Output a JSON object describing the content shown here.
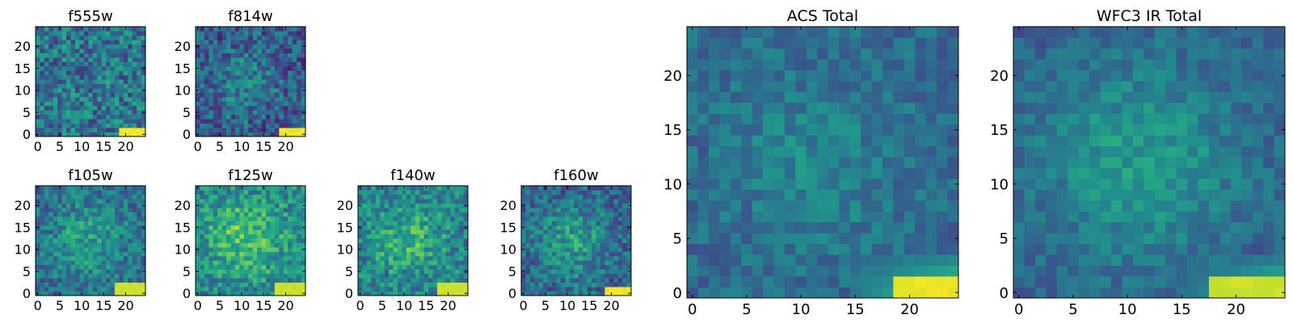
{
  "chart_data": [
    {
      "type": "heatmap",
      "title": "f555w",
      "xticks": [
        0,
        5,
        10,
        15,
        20
      ],
      "yticks": [
        0,
        5,
        10,
        15,
        20
      ],
      "xlim": [
        -0.5,
        24.5
      ],
      "ylim": [
        -0.5,
        24.5
      ],
      "grid_size": 25,
      "grid": false,
      "colormap": "viridis",
      "noise_level": 0.45,
      "background_level": 0.4,
      "features": [
        {
          "kind": "bright_corner",
          "x_range": [
            19,
            24
          ],
          "y_range": [
            0,
            1
          ],
          "level": 1.0
        }
      ]
    },
    {
      "type": "heatmap",
      "title": "f814w",
      "xticks": [
        0,
        5,
        10,
        15,
        20
      ],
      "yticks": [
        0,
        5,
        10,
        15,
        20
      ],
      "xlim": [
        -0.5,
        24.5
      ],
      "ylim": [
        -0.5,
        24.5
      ],
      "grid_size": 25,
      "grid": false,
      "colormap": "viridis",
      "noise_level": 0.4,
      "background_level": 0.28,
      "features": [
        {
          "kind": "blob",
          "x": 11,
          "y": 12,
          "radius": 5,
          "level": 0.18
        },
        {
          "kind": "bright_corner",
          "x_range": [
            19,
            24
          ],
          "y_range": [
            0,
            1
          ],
          "level": 1.0
        }
      ]
    },
    {
      "type": "heatmap",
      "title": "f105w",
      "xticks": [
        0,
        5,
        10,
        15,
        20
      ],
      "yticks": [
        0,
        5,
        10,
        15,
        20
      ],
      "xlim": [
        -0.5,
        24.5
      ],
      "ylim": [
        -0.5,
        24.5
      ],
      "grid_size": 25,
      "grid": false,
      "colormap": "viridis",
      "noise_level": 0.35,
      "background_level": 0.36,
      "features": [
        {
          "kind": "blob",
          "x": 11,
          "y": 12,
          "radius": 6,
          "level": 0.22
        },
        {
          "kind": "bright_corner",
          "x_range": [
            18,
            24
          ],
          "y_range": [
            0,
            2
          ],
          "level": 0.95
        }
      ]
    },
    {
      "type": "heatmap",
      "title": "f125w",
      "xticks": [
        0,
        5,
        10,
        15,
        20
      ],
      "yticks": [
        0,
        5,
        10,
        15,
        20
      ],
      "xlim": [
        -0.5,
        24.5
      ],
      "ylim": [
        -0.5,
        24.5
      ],
      "grid_size": 25,
      "grid": false,
      "colormap": "viridis",
      "noise_level": 0.38,
      "background_level": 0.46,
      "features": [
        {
          "kind": "blob",
          "x": 11,
          "y": 13,
          "radius": 6,
          "level": 0.28
        },
        {
          "kind": "bright_corner",
          "x_range": [
            18,
            24
          ],
          "y_range": [
            0,
            2
          ],
          "level": 0.95
        }
      ]
    },
    {
      "type": "heatmap",
      "title": "f140w",
      "xticks": [
        0,
        5,
        10,
        15,
        20
      ],
      "yticks": [
        0,
        5,
        10,
        15,
        20
      ],
      "xlim": [
        -0.5,
        24.5
      ],
      "ylim": [
        -0.5,
        24.5
      ],
      "grid_size": 25,
      "grid": false,
      "colormap": "viridis",
      "noise_level": 0.38,
      "background_level": 0.44,
      "features": [
        {
          "kind": "blob",
          "x": 11,
          "y": 12,
          "radius": 6,
          "level": 0.2
        },
        {
          "kind": "bright_corner",
          "x_range": [
            18,
            24
          ],
          "y_range": [
            0,
            2
          ],
          "level": 0.95
        }
      ]
    },
    {
      "type": "heatmap",
      "title": "f160w",
      "xticks": [
        0,
        5,
        10,
        15,
        20
      ],
      "yticks": [
        0,
        5,
        10,
        15,
        20
      ],
      "xlim": [
        -0.5,
        24.5
      ],
      "ylim": [
        -0.5,
        24.5
      ],
      "grid_size": 25,
      "grid": false,
      "colormap": "viridis",
      "noise_level": 0.36,
      "background_level": 0.32,
      "features": [
        {
          "kind": "blob",
          "x": 11,
          "y": 12,
          "radius": 6,
          "level": 0.24
        },
        {
          "kind": "bright_corner",
          "x_range": [
            19,
            24
          ],
          "y_range": [
            0,
            1
          ],
          "level": 1.0
        }
      ]
    },
    {
      "type": "heatmap",
      "title": "ACS Total",
      "xticks": [
        0,
        5,
        10,
        15,
        20
      ],
      "yticks": [
        0,
        5,
        10,
        15,
        20
      ],
      "xlim": [
        -0.5,
        24.5
      ],
      "ylim": [
        -0.5,
        24.5
      ],
      "grid_size": 25,
      "grid": false,
      "colormap": "viridis",
      "noise_level": 0.22,
      "background_level": 0.34,
      "features": [
        {
          "kind": "blob",
          "x": 11,
          "y": 12,
          "radius": 6,
          "level": 0.12
        },
        {
          "kind": "gradient_corner",
          "x_range": [
            15,
            24
          ],
          "y_range": [
            0,
            3
          ],
          "level": 0.85
        },
        {
          "kind": "bright_corner",
          "x_range": [
            19,
            24
          ],
          "y_range": [
            0,
            1
          ],
          "level": 1.0
        }
      ]
    },
    {
      "type": "heatmap",
      "title": "WFC3 IR Total",
      "xticks": [
        0,
        5,
        10,
        15,
        20
      ],
      "yticks": [
        0,
        5,
        10,
        15,
        20
      ],
      "xlim": [
        -0.5,
        24.5
      ],
      "ylim": [
        -0.5,
        24.5
      ],
      "grid_size": 25,
      "grid": false,
      "colormap": "viridis",
      "noise_level": 0.2,
      "background_level": 0.3,
      "features": [
        {
          "kind": "blob",
          "x": 11,
          "y": 12,
          "radius": 7,
          "level": 0.25
        },
        {
          "kind": "gradient_corner",
          "x_range": [
            15,
            24
          ],
          "y_range": [
            0,
            3
          ],
          "level": 0.8
        },
        {
          "kind": "bright_corner",
          "x_range": [
            18,
            24
          ],
          "y_range": [
            0,
            1
          ],
          "level": 0.95
        }
      ]
    }
  ]
}
